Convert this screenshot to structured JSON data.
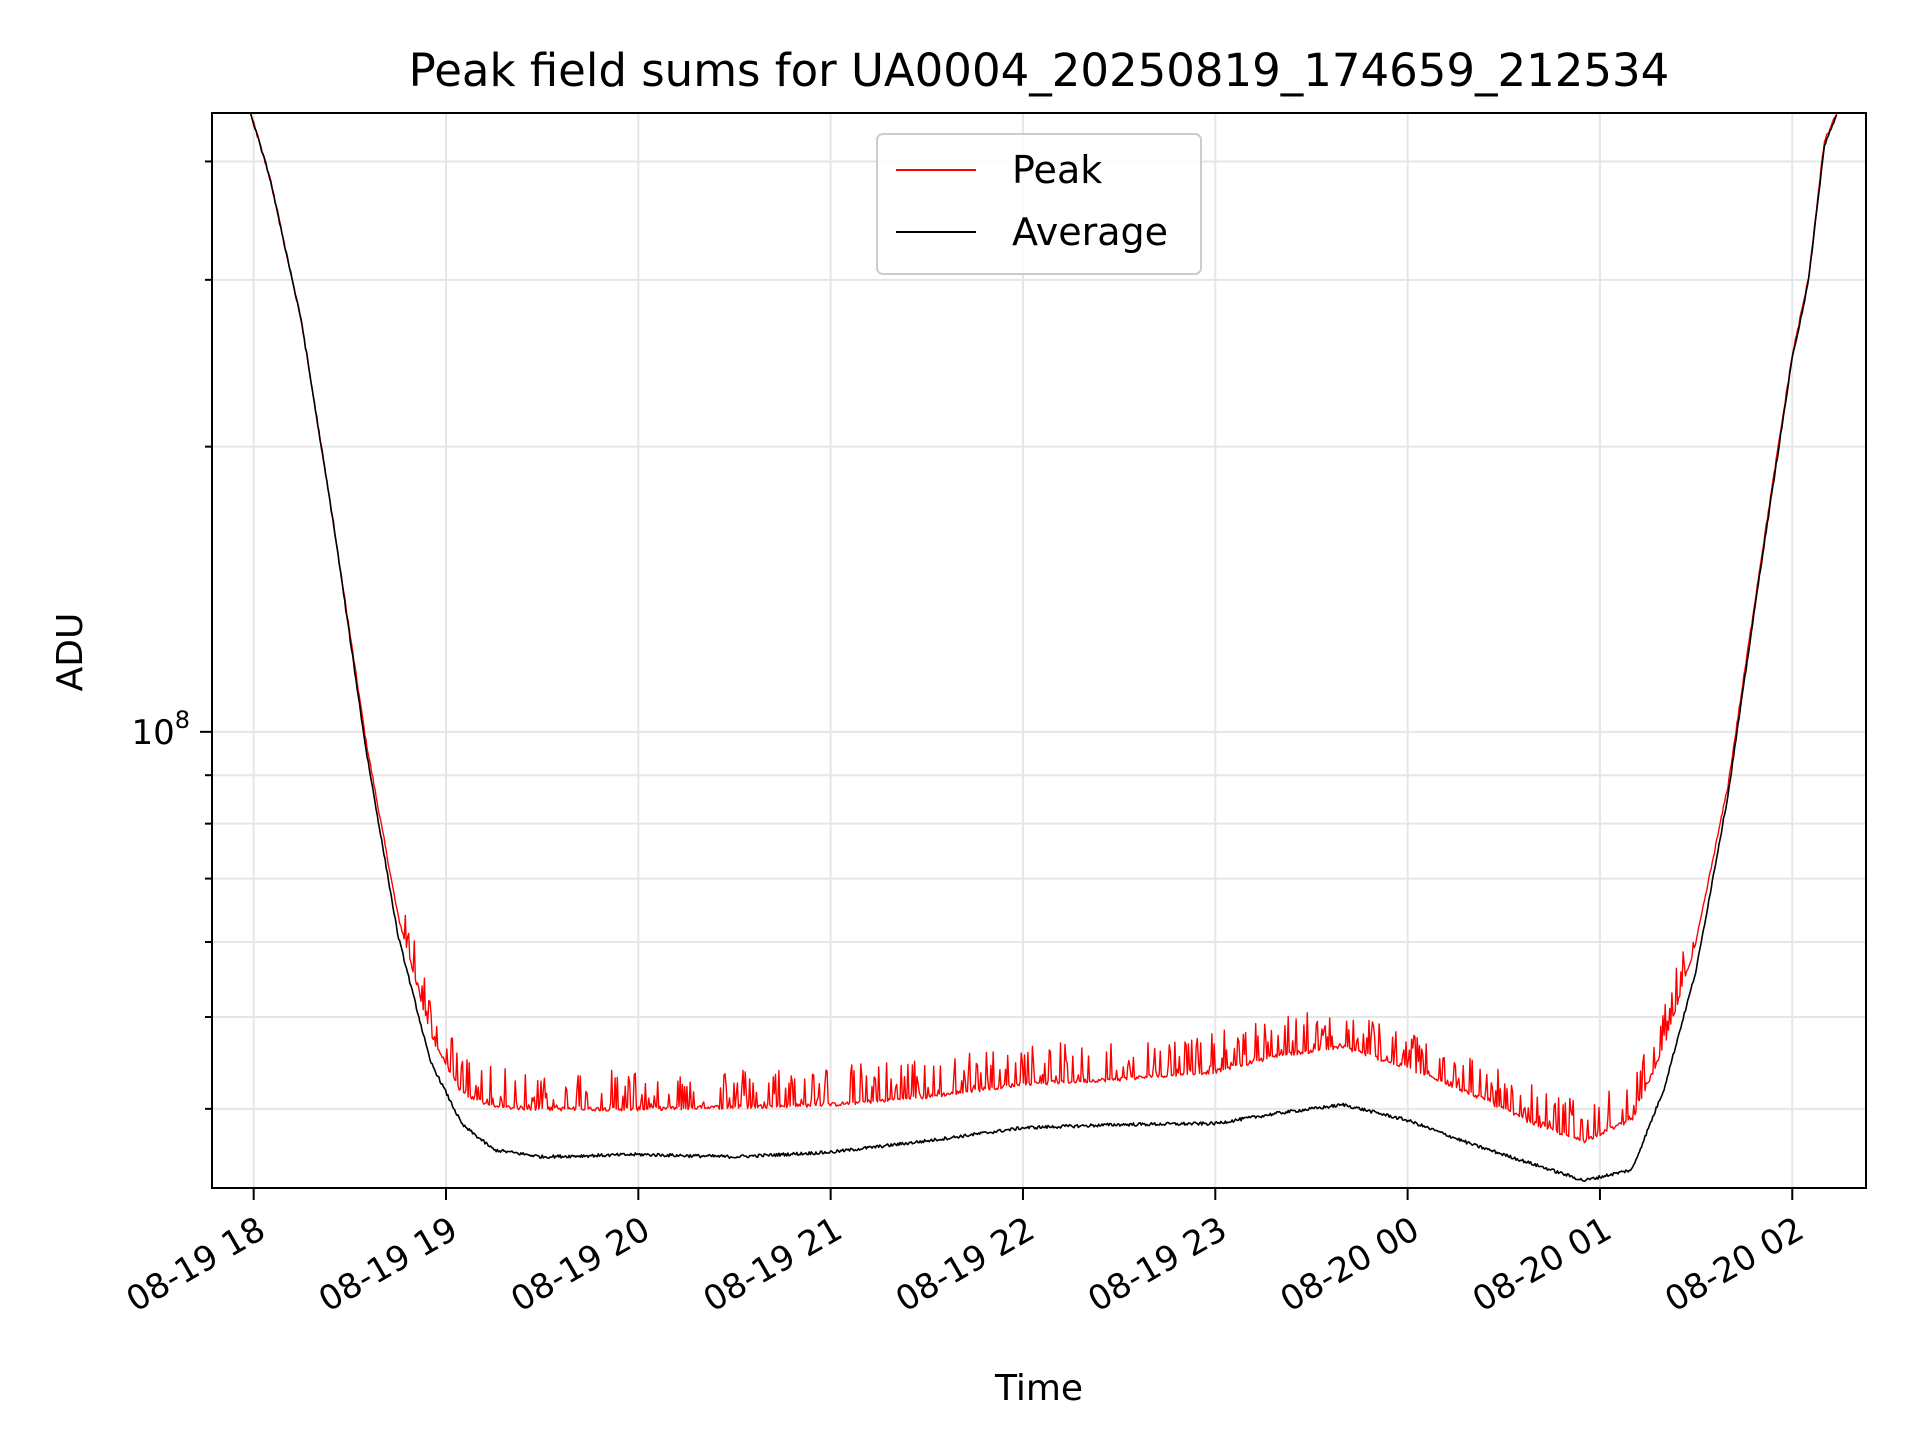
{
  "chart_data": {
    "type": "line",
    "title": "Peak field sums for UA0004_20250819_174659_212534",
    "xlabel": "Time",
    "ylabel": "ADU",
    "x_scale": "time",
    "y_scale": "log",
    "xlim": [
      "2025-08-19 17:47",
      "2025-08-20 02:23"
    ],
    "ylim": [
      33000000,
      450000000
    ],
    "x_ticks": [
      {
        "value": "2025-08-19 18:00",
        "label": "08-19 18"
      },
      {
        "value": "2025-08-19 19:00",
        "label": "08-19 19"
      },
      {
        "value": "2025-08-19 20:00",
        "label": "08-19 20"
      },
      {
        "value": "2025-08-19 21:00",
        "label": "08-19 21"
      },
      {
        "value": "2025-08-19 22:00",
        "label": "08-19 22"
      },
      {
        "value": "2025-08-19 23:00",
        "label": "08-19 23"
      },
      {
        "value": "2025-08-20 00:00",
        "label": "08-20 00"
      },
      {
        "value": "2025-08-20 01:00",
        "label": "08-20 01"
      },
      {
        "value": "2025-08-20 02:00",
        "label": "08-20 02"
      }
    ],
    "y_major_ticks": [
      {
        "value": 100000000,
        "base": "10",
        "exponent": "8"
      }
    ],
    "y_minor_ticks": [
      40000000,
      50000000,
      60000000,
      70000000,
      80000000,
      90000000,
      200000000,
      300000000,
      400000000
    ],
    "grid": true,
    "legend_position": "top-center",
    "series": [
      {
        "name": "Peak",
        "color": "#ff0000",
        "x": [
          "2025-08-19 17:59",
          "2025-08-19 18:05",
          "2025-08-19 18:15",
          "2025-08-19 18:25",
          "2025-08-19 18:35",
          "2025-08-19 18:45",
          "2025-08-19 18:55",
          "2025-08-19 19:05",
          "2025-08-19 19:15",
          "2025-08-19 19:30",
          "2025-08-19 19:45",
          "2025-08-19 20:00",
          "2025-08-19 20:30",
          "2025-08-19 21:00",
          "2025-08-19 21:30",
          "2025-08-19 22:00",
          "2025-08-19 22:30",
          "2025-08-19 23:00",
          "2025-08-19 23:20",
          "2025-08-19 23:40",
          "2025-08-20 00:00",
          "2025-08-20 00:20",
          "2025-08-20 00:40",
          "2025-08-20 00:55",
          "2025-08-20 01:10",
          "2025-08-20 01:20",
          "2025-08-20 01:30",
          "2025-08-20 01:40",
          "2025-08-20 01:50",
          "2025-08-20 02:00",
          "2025-08-20 02:05",
          "2025-08-20 02:10",
          "2025-08-20 02:14"
        ],
        "y": [
          450000000,
          385000000,
          270000000,
          165000000,
          98000000,
          64000000,
          48000000,
          41500000,
          40200000,
          40000000,
          40000000,
          40000000,
          40200000,
          40400000,
          41200000,
          42500000,
          43000000,
          43800000,
          45600000,
          46500000,
          44200000,
          41500000,
          38500000,
          37000000,
          39000000,
          46500000,
          60000000,
          88000000,
          150000000,
          250000000,
          300000000,
          420000000,
          450000000
        ]
      },
      {
        "name": "Average",
        "color": "#000000",
        "x": [
          "2025-08-19 17:59",
          "2025-08-19 18:05",
          "2025-08-19 18:15",
          "2025-08-19 18:25",
          "2025-08-19 18:35",
          "2025-08-19 18:45",
          "2025-08-19 18:55",
          "2025-08-19 19:05",
          "2025-08-19 19:15",
          "2025-08-19 19:30",
          "2025-08-19 19:45",
          "2025-08-19 20:00",
          "2025-08-19 20:30",
          "2025-08-19 21:00",
          "2025-08-19 21:30",
          "2025-08-19 22:00",
          "2025-08-19 22:30",
          "2025-08-19 23:00",
          "2025-08-19 23:20",
          "2025-08-19 23:40",
          "2025-08-20 00:00",
          "2025-08-20 00:20",
          "2025-08-20 00:40",
          "2025-08-20 00:55",
          "2025-08-20 01:10",
          "2025-08-20 01:20",
          "2025-08-20 01:30",
          "2025-08-20 01:40",
          "2025-08-20 01:50",
          "2025-08-20 02:00",
          "2025-08-20 02:05",
          "2025-08-20 02:10",
          "2025-08-20 02:14"
        ],
        "y": [
          450000000,
          385000000,
          270000000,
          165000000,
          96000000,
          61000000,
          45000000,
          38500000,
          36200000,
          35600000,
          35700000,
          35800000,
          35600000,
          36000000,
          37000000,
          38200000,
          38500000,
          38600000,
          39600000,
          40400000,
          38900000,
          36700000,
          34900000,
          33600000,
          34500000,
          42000000,
          56000000,
          86000000,
          148000000,
          248000000,
          298000000,
          415000000,
          450000000
        ]
      }
    ]
  }
}
